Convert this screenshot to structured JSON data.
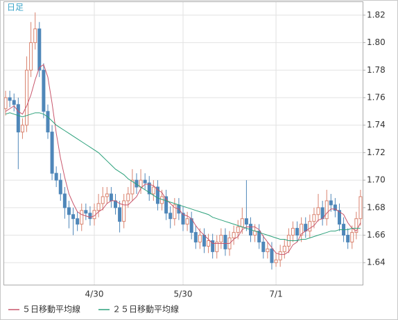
{
  "chart_data": {
    "type": "candlestick",
    "label": "日足",
    "categories": [
      null,
      null,
      null,
      null,
      null,
      null,
      null,
      null,
      null,
      null,
      null,
      null,
      null,
      null,
      null,
      null,
      null,
      null,
      null,
      null,
      null,
      "4/30",
      null,
      null,
      null,
      null,
      null,
      null,
      null,
      null,
      null,
      null,
      null,
      null,
      null,
      null,
      null,
      null,
      null,
      null,
      null,
      null,
      "5/30",
      null,
      null,
      null,
      null,
      null,
      null,
      null,
      null,
      null,
      null,
      null,
      null,
      null,
      null,
      null,
      null,
      null,
      null,
      null,
      null,
      null,
      "7/1",
      null,
      null,
      null,
      null,
      null,
      null,
      null,
      null,
      null,
      null,
      null,
      null,
      null,
      null,
      null,
      null,
      null,
      null,
      null,
      null
    ],
    "open": [
      1.752,
      1.76,
      1.758,
      1.755,
      1.735,
      1.74,
      1.78,
      1.8,
      1.81,
      1.78,
      1.75,
      1.735,
      1.705,
      1.7,
      1.69,
      1.68,
      1.675,
      1.672,
      1.668,
      1.678,
      1.676,
      1.672,
      1.678,
      1.683,
      1.688,
      1.69,
      1.685,
      1.68,
      1.67,
      1.685,
      1.69,
      1.7,
      1.695,
      1.7,
      1.698,
      1.69,
      1.695,
      1.683,
      1.688,
      1.676,
      1.672,
      1.682,
      1.676,
      1.668,
      1.672,
      1.662,
      1.655,
      1.66,
      1.652,
      1.656,
      1.648,
      1.655,
      1.66,
      1.65,
      1.658,
      1.662,
      1.666,
      1.672,
      1.668,
      1.66,
      1.663,
      1.655,
      1.648,
      1.65,
      1.64,
      1.642,
      1.648,
      1.652,
      1.66,
      1.665,
      1.66,
      1.668,
      1.663,
      1.67,
      1.675,
      1.68,
      1.672,
      1.685,
      1.682,
      1.678,
      1.668,
      1.66,
      1.655,
      1.662,
      1.672
    ],
    "high": [
      1.765,
      1.765,
      1.763,
      1.76,
      1.745,
      1.79,
      1.815,
      1.822,
      1.815,
      1.785,
      1.755,
      1.74,
      1.71,
      1.705,
      1.695,
      1.685,
      1.68,
      1.677,
      1.683,
      1.683,
      1.681,
      1.683,
      1.69,
      1.695,
      1.695,
      1.695,
      1.69,
      1.685,
      1.69,
      1.695,
      1.708,
      1.705,
      1.708,
      1.705,
      1.703,
      1.7,
      1.7,
      1.693,
      1.693,
      1.681,
      1.687,
      1.687,
      1.681,
      1.677,
      1.677,
      1.667,
      1.665,
      1.665,
      1.661,
      1.661,
      1.66,
      1.665,
      1.665,
      1.663,
      1.667,
      1.671,
      1.68,
      1.7,
      1.673,
      1.668,
      1.668,
      1.66,
      1.655,
      1.655,
      1.647,
      1.653,
      1.657,
      1.665,
      1.67,
      1.67,
      1.673,
      1.673,
      1.675,
      1.68,
      1.69,
      1.685,
      1.693,
      1.69,
      1.687,
      1.683,
      1.673,
      1.665,
      1.667,
      1.677,
      1.693
    ],
    "low": [
      1.747,
      1.753,
      1.75,
      1.708,
      1.73,
      1.735,
      1.775,
      1.795,
      1.775,
      1.745,
      1.73,
      1.7,
      1.695,
      1.685,
      1.672,
      1.665,
      1.66,
      1.663,
      1.663,
      1.671,
      1.667,
      1.667,
      1.673,
      1.678,
      1.683,
      1.68,
      1.675,
      1.662,
      1.665,
      1.68,
      1.685,
      1.69,
      1.69,
      1.693,
      1.685,
      1.685,
      1.678,
      1.678,
      1.671,
      1.665,
      1.667,
      1.671,
      1.663,
      1.663,
      1.657,
      1.65,
      1.65,
      1.647,
      1.647,
      1.643,
      1.643,
      1.65,
      1.645,
      1.645,
      1.653,
      1.657,
      1.661,
      1.663,
      1.655,
      1.655,
      1.65,
      1.643,
      1.643,
      1.635,
      1.637,
      1.637,
      1.643,
      1.647,
      1.655,
      1.655,
      1.655,
      1.658,
      1.658,
      1.665,
      1.67,
      1.667,
      1.667,
      1.677,
      1.673,
      1.663,
      1.655,
      1.65,
      1.65,
      1.657,
      1.667
    ],
    "close": [
      1.76,
      1.758,
      1.755,
      1.735,
      1.74,
      1.78,
      1.8,
      1.81,
      1.78,
      1.75,
      1.735,
      1.705,
      1.7,
      1.69,
      1.68,
      1.675,
      1.672,
      1.668,
      1.678,
      1.676,
      1.672,
      1.678,
      1.683,
      1.688,
      1.69,
      1.685,
      1.68,
      1.67,
      1.685,
      1.69,
      1.7,
      1.695,
      1.7,
      1.698,
      1.69,
      1.695,
      1.683,
      1.688,
      1.676,
      1.672,
      1.682,
      1.676,
      1.668,
      1.672,
      1.662,
      1.655,
      1.66,
      1.652,
      1.656,
      1.648,
      1.655,
      1.66,
      1.65,
      1.658,
      1.662,
      1.666,
      1.672,
      1.668,
      1.66,
      1.663,
      1.655,
      1.648,
      1.65,
      1.64,
      1.642,
      1.648,
      1.652,
      1.66,
      1.665,
      1.66,
      1.668,
      1.663,
      1.67,
      1.675,
      1.68,
      1.672,
      1.685,
      1.682,
      1.678,
      1.668,
      1.66,
      1.655,
      1.662,
      1.672,
      1.688
    ],
    "up_color": "#d9826e",
    "down_color": "#4f87b9",
    "series": [
      {
        "name": "５日移動平均線",
        "color": "#c8556b",
        "values": [
          1.75,
          1.752,
          1.754,
          1.75,
          1.748,
          1.754,
          1.762,
          1.773,
          1.782,
          1.784,
          1.775,
          1.756,
          1.734,
          1.716,
          1.702,
          1.69,
          1.683,
          1.677,
          1.675,
          1.674,
          1.673,
          1.674,
          1.677,
          1.679,
          1.683,
          1.685,
          1.685,
          1.683,
          1.682,
          1.682,
          1.685,
          1.688,
          1.694,
          1.697,
          1.697,
          1.696,
          1.693,
          1.691,
          1.686,
          1.683,
          1.68,
          1.679,
          1.675,
          1.674,
          1.672,
          1.667,
          1.663,
          1.66,
          1.657,
          1.654,
          1.654,
          1.654,
          1.654,
          1.654,
          1.657,
          1.659,
          1.664,
          1.666,
          1.666,
          1.666,
          1.664,
          1.659,
          1.655,
          1.651,
          1.647,
          1.646,
          1.646,
          1.648,
          1.653,
          1.655,
          1.661,
          1.663,
          1.665,
          1.667,
          1.671,
          1.672,
          1.676,
          1.679,
          1.679,
          1.677,
          1.675,
          1.669,
          1.665,
          1.663,
          1.669
        ]
      },
      {
        "name": "２５日移動平均線",
        "color": "#2aa07a",
        "values": [
          1.748,
          1.749,
          1.748,
          1.747,
          1.746,
          1.747,
          1.748,
          1.749,
          1.749,
          1.748,
          1.746,
          1.743,
          1.74,
          1.738,
          1.736,
          1.734,
          1.732,
          1.73,
          1.728,
          1.726,
          1.724,
          1.722,
          1.72,
          1.717,
          1.714,
          1.711,
          1.708,
          1.706,
          1.704,
          1.701,
          1.699,
          1.697,
          1.695,
          1.693,
          1.691,
          1.689,
          1.687,
          1.686,
          1.685,
          1.684,
          1.683,
          1.682,
          1.681,
          1.68,
          1.679,
          1.678,
          1.677,
          1.676,
          1.675,
          1.673,
          1.672,
          1.671,
          1.67,
          1.669,
          1.668,
          1.667,
          1.666,
          1.665,
          1.664,
          1.663,
          1.662,
          1.661,
          1.66,
          1.659,
          1.658,
          1.657,
          1.657,
          1.656,
          1.656,
          1.656,
          1.657,
          1.657,
          1.658,
          1.659,
          1.66,
          1.661,
          1.662,
          1.663,
          1.663,
          1.664,
          1.664,
          1.664,
          1.665,
          1.665,
          1.665
        ]
      }
    ],
    "ylim": [
      1.624,
      1.83
    ],
    "yticks": [
      1.64,
      1.66,
      1.68,
      {
        "value": 1.7,
        "label": "1.70"
      },
      1.72,
      1.74,
      1.76,
      1.78,
      {
        "value": 1.8,
        "label": "1.80"
      },
      1.82
    ],
    "grid": true
  }
}
